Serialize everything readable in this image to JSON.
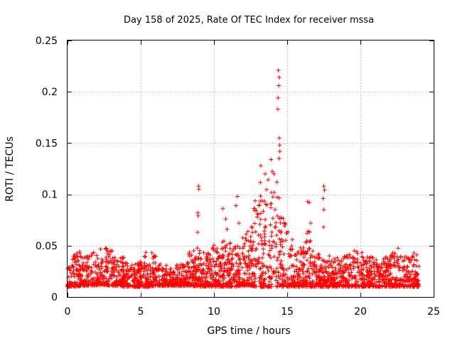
{
  "chart_data": {
    "type": "scatter",
    "title": "Day 158 of 2025, Rate Of TEC Index for receiver mssa",
    "xlabel": "GPS time / hours",
    "ylabel": "ROTI / TECUs",
    "xlim": [
      0,
      25
    ],
    "ylim": [
      0,
      0.25
    ],
    "xticks": [
      0,
      5,
      10,
      15,
      20,
      25
    ],
    "xtick_labels": [
      "0",
      "5",
      "10",
      "15",
      "20",
      "25"
    ],
    "yticks": [
      0,
      0.05,
      0.1,
      0.15,
      0.2,
      0.25
    ],
    "ytick_labels": [
      "0",
      "0.05",
      "0.1",
      "0.15",
      "0.2",
      "0.25"
    ],
    "grid": true,
    "marker": "+",
    "color": "#ff0000",
    "series": [
      {
        "name": "ROTI",
        "envelope_hours": [
          0,
          0.5,
          1,
          1.5,
          2,
          2.5,
          3,
          3.5,
          4,
          4.5,
          5,
          5.5,
          6,
          6.5,
          7,
          7.5,
          8,
          8.5,
          9,
          9.5,
          10,
          10.5,
          11,
          11.5,
          12,
          12.5,
          13,
          13.5,
          14,
          14.5,
          15,
          15.5,
          16,
          16.5,
          17,
          17.5,
          18,
          18.5,
          19,
          19.5,
          20,
          20.5,
          21,
          21.5,
          22,
          22.5,
          23,
          23.5,
          24
        ],
        "envelope_low": [
          0.01,
          0.01,
          0.011,
          0.011,
          0.011,
          0.012,
          0.011,
          0.011,
          0.01,
          0.01,
          0.01,
          0.01,
          0.011,
          0.011,
          0.011,
          0.011,
          0.011,
          0.011,
          0.01,
          0.01,
          0.01,
          0.01,
          0.01,
          0.01,
          0.011,
          0.011,
          0.01,
          0.01,
          0.01,
          0.01,
          0.01,
          0.01,
          0.01,
          0.01,
          0.01,
          0.01,
          0.01,
          0.01,
          0.01,
          0.01,
          0.01,
          0.01,
          0.01,
          0.01,
          0.01,
          0.01,
          0.01,
          0.01,
          0.01
        ],
        "envelope_high": [
          0.03,
          0.042,
          0.048,
          0.045,
          0.046,
          0.048,
          0.046,
          0.044,
          0.036,
          0.03,
          0.038,
          0.048,
          0.04,
          0.032,
          0.03,
          0.032,
          0.036,
          0.048,
          0.052,
          0.045,
          0.052,
          0.055,
          0.056,
          0.052,
          0.06,
          0.07,
          0.11,
          0.115,
          0.125,
          0.095,
          0.07,
          0.05,
          0.048,
          0.07,
          0.042,
          0.046,
          0.04,
          0.038,
          0.04,
          0.045,
          0.046,
          0.04,
          0.038,
          0.036,
          0.042,
          0.05,
          0.04,
          0.045,
          0.04
        ],
        "spikes": [
          {
            "x": 8.95,
            "y": 0.108
          },
          {
            "x": 8.97,
            "y": 0.105
          },
          {
            "x": 8.9,
            "y": 0.082
          },
          {
            "x": 8.92,
            "y": 0.079
          },
          {
            "x": 8.88,
            "y": 0.063
          },
          {
            "x": 10.6,
            "y": 0.086
          },
          {
            "x": 10.8,
            "y": 0.076
          },
          {
            "x": 10.9,
            "y": 0.066
          },
          {
            "x": 11.5,
            "y": 0.089
          },
          {
            "x": 11.6,
            "y": 0.098
          },
          {
            "x": 11.7,
            "y": 0.072
          },
          {
            "x": 13.2,
            "y": 0.128
          },
          {
            "x": 13.5,
            "y": 0.12
          },
          {
            "x": 13.9,
            "y": 0.134
          },
          {
            "x": 14.1,
            "y": 0.12
          },
          {
            "x": 14.3,
            "y": 0.112
          },
          {
            "x": 14.4,
            "y": 0.221
          },
          {
            "x": 14.45,
            "y": 0.214
          },
          {
            "x": 14.42,
            "y": 0.206
          },
          {
            "x": 14.38,
            "y": 0.194
          },
          {
            "x": 14.36,
            "y": 0.183
          },
          {
            "x": 14.46,
            "y": 0.155
          },
          {
            "x": 14.48,
            "y": 0.148
          },
          {
            "x": 14.5,
            "y": 0.142
          },
          {
            "x": 14.44,
            "y": 0.135
          },
          {
            "x": 16.4,
            "y": 0.093
          },
          {
            "x": 16.5,
            "y": 0.092
          },
          {
            "x": 16.6,
            "y": 0.072
          },
          {
            "x": 17.5,
            "y": 0.108
          },
          {
            "x": 17.55,
            "y": 0.104
          },
          {
            "x": 17.45,
            "y": 0.096
          },
          {
            "x": 17.5,
            "y": 0.085
          },
          {
            "x": 17.48,
            "y": 0.068
          }
        ]
      }
    ]
  }
}
